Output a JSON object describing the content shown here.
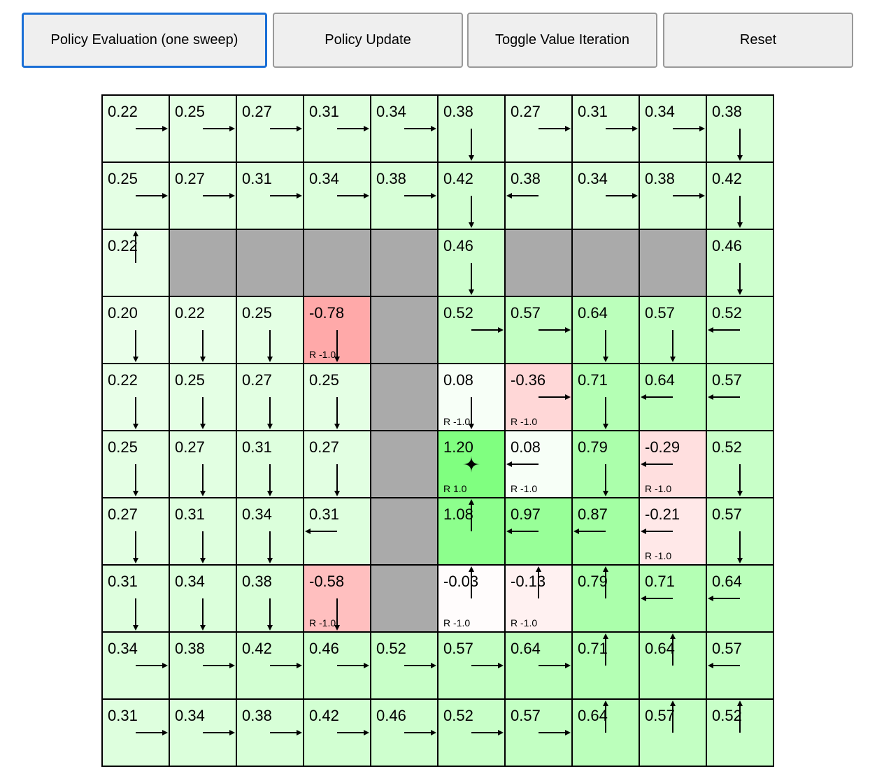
{
  "toolbar": {
    "policy_eval": "Policy Evaluation (one sweep)",
    "policy_update": "Policy Update",
    "toggle_vi": "Toggle Value Iteration",
    "reset": "Reset"
  },
  "colors": {
    "wall": "#aaaaaa",
    "grid_line": "#000000",
    "active_border": "#1a6fd6"
  },
  "grid": {
    "rows": [
      [
        {
          "v": "0.22",
          "a": "R"
        },
        {
          "v": "0.25",
          "a": "R"
        },
        {
          "v": "0.27",
          "a": "R"
        },
        {
          "v": "0.31",
          "a": "R"
        },
        {
          "v": "0.34",
          "a": "R"
        },
        {
          "v": "0.38",
          "a": "D"
        },
        {
          "v": "0.27",
          "a": "R"
        },
        {
          "v": "0.31",
          "a": "R"
        },
        {
          "v": "0.34",
          "a": "R"
        },
        {
          "v": "0.38",
          "a": "D"
        }
      ],
      [
        {
          "v": "0.25",
          "a": "R"
        },
        {
          "v": "0.27",
          "a": "R"
        },
        {
          "v": "0.31",
          "a": "R"
        },
        {
          "v": "0.34",
          "a": "R"
        },
        {
          "v": "0.38",
          "a": "R"
        },
        {
          "v": "0.42",
          "a": "D"
        },
        {
          "v": "0.38",
          "a": "L"
        },
        {
          "v": "0.34",
          "a": "R"
        },
        {
          "v": "0.38",
          "a": "R"
        },
        {
          "v": "0.42",
          "a": "D"
        }
      ],
      [
        {
          "v": "0.22",
          "a": "U"
        },
        {
          "wall": true
        },
        {
          "wall": true
        },
        {
          "wall": true
        },
        {
          "wall": true
        },
        {
          "v": "0.46",
          "a": "D"
        },
        {
          "wall": true
        },
        {
          "wall": true
        },
        {
          "wall": true
        },
        {
          "v": "0.46",
          "a": "D"
        }
      ],
      [
        {
          "v": "0.20",
          "a": "D"
        },
        {
          "v": "0.22",
          "a": "D"
        },
        {
          "v": "0.25",
          "a": "D"
        },
        {
          "v": "-0.78",
          "a": "D",
          "r": "R -1.0"
        },
        {
          "wall": true
        },
        {
          "v": "0.52",
          "a": "R"
        },
        {
          "v": "0.57",
          "a": "R"
        },
        {
          "v": "0.64",
          "a": "D"
        },
        {
          "v": "0.57",
          "a": "D"
        },
        {
          "v": "0.52",
          "a": "L"
        }
      ],
      [
        {
          "v": "0.22",
          "a": "D"
        },
        {
          "v": "0.25",
          "a": "D"
        },
        {
          "v": "0.27",
          "a": "D"
        },
        {
          "v": "0.25",
          "a": "D"
        },
        {
          "wall": true
        },
        {
          "v": "0.08",
          "a": "D",
          "r": "R -1.0"
        },
        {
          "v": "-0.36",
          "a": "R",
          "r": "R -1.0"
        },
        {
          "v": "0.71",
          "a": "D"
        },
        {
          "v": "0.64",
          "a": "L"
        },
        {
          "v": "0.57",
          "a": "L"
        }
      ],
      [
        {
          "v": "0.25",
          "a": "D"
        },
        {
          "v": "0.27",
          "a": "D"
        },
        {
          "v": "0.31",
          "a": "D"
        },
        {
          "v": "0.27",
          "a": "D"
        },
        {
          "wall": true
        },
        {
          "v": "1.20",
          "goal": true,
          "r": "R 1.0"
        },
        {
          "v": "0.08",
          "a": "L",
          "r": "R -1.0"
        },
        {
          "v": "0.79",
          "a": "D"
        },
        {
          "v": "-0.29",
          "a": "L",
          "r": "R -1.0"
        },
        {
          "v": "0.52",
          "a": "D"
        }
      ],
      [
        {
          "v": "0.27",
          "a": "D"
        },
        {
          "v": "0.31",
          "a": "D"
        },
        {
          "v": "0.34",
          "a": "D"
        },
        {
          "v": "0.31",
          "a": "L"
        },
        {
          "wall": true
        },
        {
          "v": "1.08",
          "a": "U"
        },
        {
          "v": "0.97",
          "a": "L"
        },
        {
          "v": "0.87",
          "a": "L"
        },
        {
          "v": "-0.21",
          "a": "L",
          "r": "R -1.0"
        },
        {
          "v": "0.57",
          "a": "D"
        }
      ],
      [
        {
          "v": "0.31",
          "a": "D"
        },
        {
          "v": "0.34",
          "a": "D"
        },
        {
          "v": "0.38",
          "a": "D"
        },
        {
          "v": "-0.58",
          "a": "D",
          "r": "R -1.0"
        },
        {
          "wall": true
        },
        {
          "v": "-0.03",
          "a": "U",
          "r": "R -1.0"
        },
        {
          "v": "-0.13",
          "a": "U",
          "r": "R -1.0"
        },
        {
          "v": "0.79",
          "a": "U"
        },
        {
          "v": "0.71",
          "a": "L"
        },
        {
          "v": "0.64",
          "a": "L"
        }
      ],
      [
        {
          "v": "0.34",
          "a": "R"
        },
        {
          "v": "0.38",
          "a": "R"
        },
        {
          "v": "0.42",
          "a": "R"
        },
        {
          "v": "0.46",
          "a": "R"
        },
        {
          "v": "0.52",
          "a": "R"
        },
        {
          "v": "0.57",
          "a": "R"
        },
        {
          "v": "0.64",
          "a": "R"
        },
        {
          "v": "0.71",
          "a": "U"
        },
        {
          "v": "0.64",
          "a": "U"
        },
        {
          "v": "0.57",
          "a": "L"
        }
      ],
      [
        {
          "v": "0.31",
          "a": "R"
        },
        {
          "v": "0.34",
          "a": "R"
        },
        {
          "v": "0.38",
          "a": "R"
        },
        {
          "v": "0.42",
          "a": "R"
        },
        {
          "v": "0.46",
          "a": "R"
        },
        {
          "v": "0.52",
          "a": "R"
        },
        {
          "v": "0.57",
          "a": "R"
        },
        {
          "v": "0.64",
          "a": "U"
        },
        {
          "v": "0.57",
          "a": "U"
        },
        {
          "v": "0.52",
          "a": "U"
        }
      ]
    ]
  }
}
